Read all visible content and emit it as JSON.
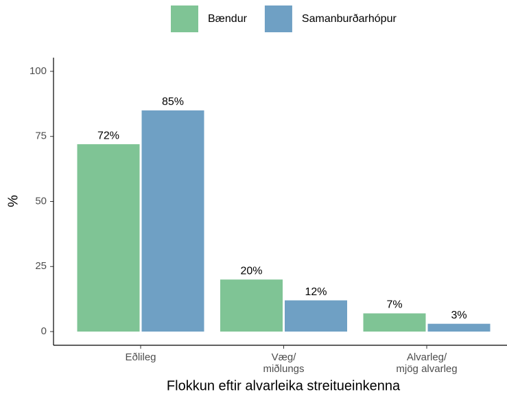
{
  "chart_data": {
    "type": "bar",
    "x_label": "Flokkun eftir alvarleika streitueinkenna",
    "y_label": "%",
    "categories": [
      "Eðlileg",
      "Væg/\nmiðlungs",
      "Alvarleg/\nmjög alvarleg"
    ],
    "series": [
      {
        "name": "Bændur",
        "color": "#7fc495",
        "values": [
          72,
          20,
          7
        ],
        "value_labels": [
          "72%",
          "20%",
          "7%"
        ]
      },
      {
        "name": "Samanburðarhópur",
        "color": "#6fa0c4",
        "values": [
          85,
          12,
          3
        ],
        "value_labels": [
          "85%",
          "12%",
          "3%"
        ]
      }
    ],
    "ylim": [
      -5.26,
      105.26
    ],
    "yticks": [
      0,
      25,
      50,
      75,
      100
    ],
    "legend": "top",
    "grid": false
  }
}
